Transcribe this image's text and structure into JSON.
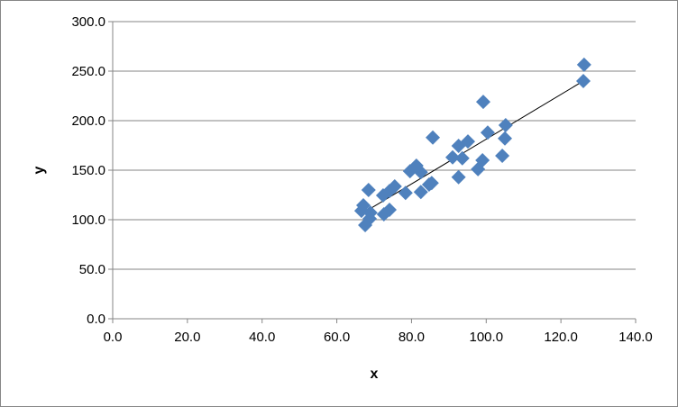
{
  "chart_data": {
    "type": "scatter",
    "title": "",
    "xlabel": "x",
    "ylabel": "y",
    "xlim": [
      0,
      140
    ],
    "ylim": [
      0,
      300
    ],
    "xticks": [
      "0.0",
      "20.0",
      "40.0",
      "60.0",
      "80.0",
      "100.0",
      "120.0",
      "140.0"
    ],
    "yticks": [
      "0.0",
      "50.0",
      "100.0",
      "150.0",
      "200.0",
      "250.0",
      "300.0"
    ],
    "grid": "horizontal",
    "legend": "none",
    "trendline": "linear",
    "marker_color": "#4F81BD",
    "points": [
      [
        67.6,
        94.5
      ],
      [
        66.6,
        109
      ],
      [
        67.1,
        114.5
      ],
      [
        68.5,
        130
      ],
      [
        68.8,
        101
      ],
      [
        69.0,
        107
      ],
      [
        72.4,
        124.5
      ],
      [
        72.6,
        105.5
      ],
      [
        74.1,
        110
      ],
      [
        74.1,
        129
      ],
      [
        75.5,
        133.6
      ],
      [
        78.4,
        127
      ],
      [
        79.6,
        149
      ],
      [
        81.3,
        154.5
      ],
      [
        82.5,
        148
      ],
      [
        82.5,
        128
      ],
      [
        84.7,
        135.5
      ],
      [
        85.4,
        137
      ],
      [
        85.7,
        183
      ],
      [
        91.0,
        163
      ],
      [
        92.6,
        143
      ],
      [
        92.6,
        174.5
      ],
      [
        93.6,
        162
      ],
      [
        95.1,
        179
      ],
      [
        97.8,
        151
      ],
      [
        99.0,
        160
      ],
      [
        99.2,
        219
      ],
      [
        100.4,
        188
      ],
      [
        104.3,
        164.5
      ],
      [
        105.0,
        182
      ],
      [
        105.2,
        195.5
      ],
      [
        126.0,
        240
      ],
      [
        126.2,
        256.5
      ]
    ]
  }
}
